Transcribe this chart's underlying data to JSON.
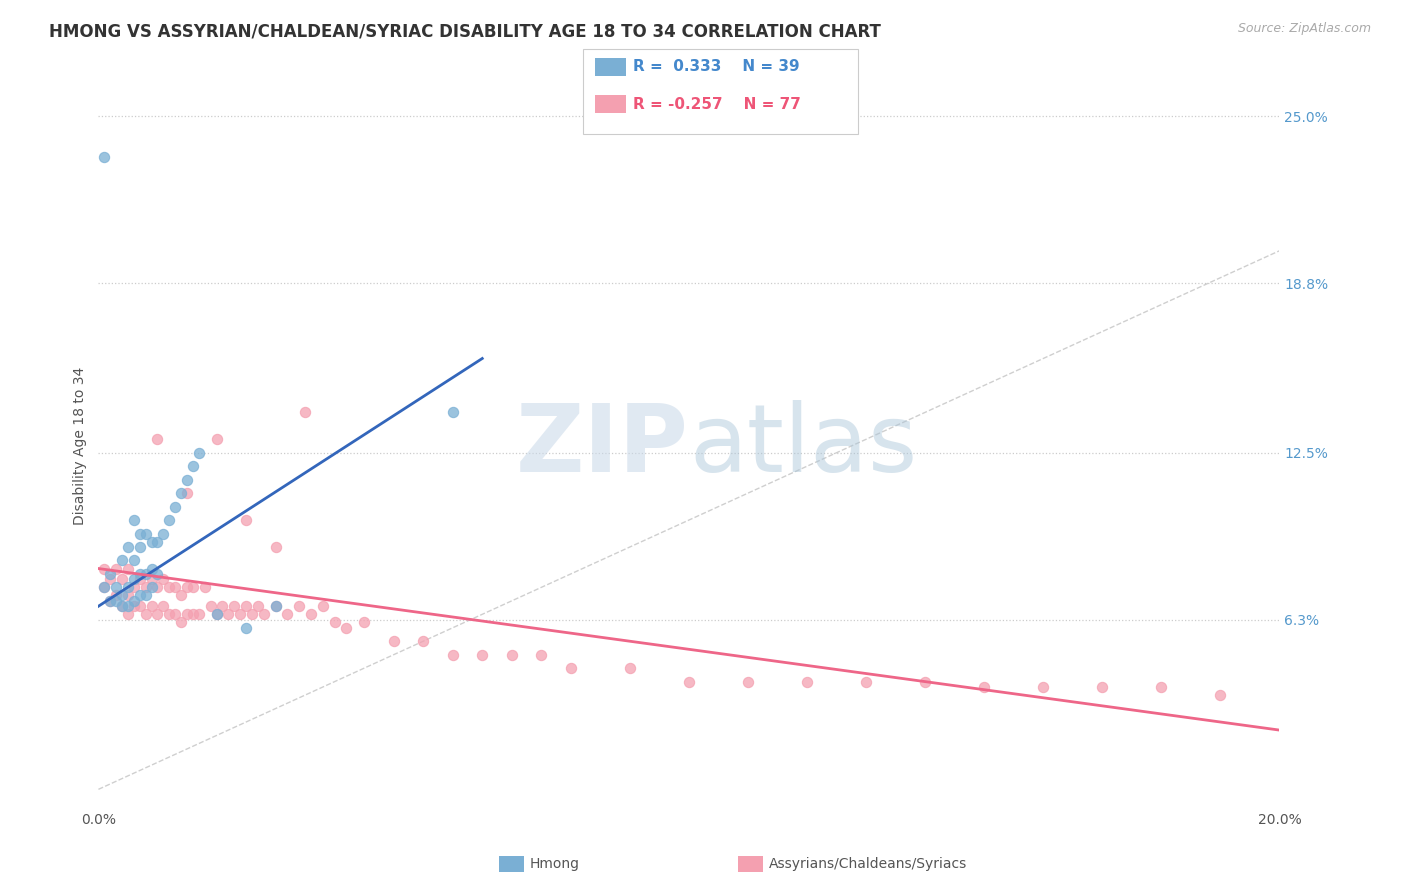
{
  "title": "HMONG VS ASSYRIAN/CHALDEAN/SYRIAC DISABILITY AGE 18 TO 34 CORRELATION CHART",
  "source": "Source: ZipAtlas.com",
  "ylabel_label": "Disability Age 18 to 34",
  "xmin": 0.0,
  "xmax": 0.2,
  "ymin": -0.005,
  "ymax": 0.26,
  "x_ticks": [
    0.0,
    0.05,
    0.1,
    0.15,
    0.2
  ],
  "x_tick_labels": [
    "0.0%",
    "",
    "",
    "",
    "20.0%"
  ],
  "y_tick_labels_right": [
    "25.0%",
    "18.8%",
    "12.5%",
    "6.3%"
  ],
  "y_tick_positions_right": [
    0.25,
    0.188,
    0.125,
    0.063
  ],
  "legend_blue_r": "0.333",
  "legend_blue_n": "39",
  "legend_pink_r": "-0.257",
  "legend_pink_n": "77",
  "blue_color": "#7AAFD4",
  "pink_color": "#F4A0B0",
  "blue_line_color": "#3366BB",
  "pink_line_color": "#EE6688",
  "diagonal_color": "#BBBBBB",
  "watermark_zip": "ZIP",
  "watermark_atlas": "atlas",
  "blue_scatter_x": [
    0.001,
    0.001,
    0.002,
    0.002,
    0.003,
    0.003,
    0.004,
    0.004,
    0.004,
    0.005,
    0.005,
    0.005,
    0.006,
    0.006,
    0.006,
    0.006,
    0.007,
    0.007,
    0.007,
    0.007,
    0.008,
    0.008,
    0.008,
    0.009,
    0.009,
    0.009,
    0.01,
    0.01,
    0.011,
    0.012,
    0.013,
    0.014,
    0.015,
    0.016,
    0.017,
    0.02,
    0.025,
    0.03,
    0.06
  ],
  "blue_scatter_y": [
    0.235,
    0.075,
    0.07,
    0.08,
    0.07,
    0.075,
    0.068,
    0.072,
    0.085,
    0.068,
    0.075,
    0.09,
    0.07,
    0.078,
    0.085,
    0.1,
    0.072,
    0.08,
    0.09,
    0.095,
    0.072,
    0.08,
    0.095,
    0.075,
    0.082,
    0.092,
    0.08,
    0.092,
    0.095,
    0.1,
    0.105,
    0.11,
    0.115,
    0.12,
    0.125,
    0.065,
    0.06,
    0.068,
    0.14
  ],
  "pink_scatter_x": [
    0.001,
    0.001,
    0.002,
    0.002,
    0.003,
    0.003,
    0.004,
    0.004,
    0.005,
    0.005,
    0.005,
    0.006,
    0.006,
    0.007,
    0.007,
    0.008,
    0.008,
    0.009,
    0.009,
    0.01,
    0.01,
    0.011,
    0.011,
    0.012,
    0.012,
    0.013,
    0.013,
    0.014,
    0.014,
    0.015,
    0.015,
    0.016,
    0.016,
    0.017,
    0.018,
    0.019,
    0.02,
    0.021,
    0.022,
    0.023,
    0.024,
    0.025,
    0.026,
    0.027,
    0.028,
    0.03,
    0.032,
    0.034,
    0.036,
    0.038,
    0.04,
    0.042,
    0.045,
    0.05,
    0.055,
    0.06,
    0.065,
    0.07,
    0.075,
    0.08,
    0.09,
    0.1,
    0.11,
    0.12,
    0.13,
    0.14,
    0.15,
    0.16,
    0.17,
    0.18,
    0.19,
    0.01,
    0.015,
    0.02,
    0.025,
    0.03,
    0.035
  ],
  "pink_scatter_y": [
    0.075,
    0.082,
    0.07,
    0.078,
    0.072,
    0.082,
    0.068,
    0.078,
    0.065,
    0.072,
    0.082,
    0.068,
    0.075,
    0.068,
    0.078,
    0.065,
    0.075,
    0.068,
    0.078,
    0.065,
    0.075,
    0.068,
    0.078,
    0.065,
    0.075,
    0.065,
    0.075,
    0.062,
    0.072,
    0.065,
    0.075,
    0.065,
    0.075,
    0.065,
    0.075,
    0.068,
    0.065,
    0.068,
    0.065,
    0.068,
    0.065,
    0.068,
    0.065,
    0.068,
    0.065,
    0.068,
    0.065,
    0.068,
    0.065,
    0.068,
    0.062,
    0.06,
    0.062,
    0.055,
    0.055,
    0.05,
    0.05,
    0.05,
    0.05,
    0.045,
    0.045,
    0.04,
    0.04,
    0.04,
    0.04,
    0.04,
    0.038,
    0.038,
    0.038,
    0.038,
    0.035,
    0.13,
    0.11,
    0.13,
    0.1,
    0.09,
    0.14
  ],
  "blue_line_x": [
    0.0,
    0.065
  ],
  "blue_line_y": [
    0.068,
    0.16
  ],
  "pink_line_x": [
    0.0,
    0.2
  ],
  "pink_line_y": [
    0.082,
    0.022
  ],
  "diagonal_line_x": [
    0.0,
    0.2
  ],
  "diagonal_line_y": [
    0.0,
    0.2
  ]
}
